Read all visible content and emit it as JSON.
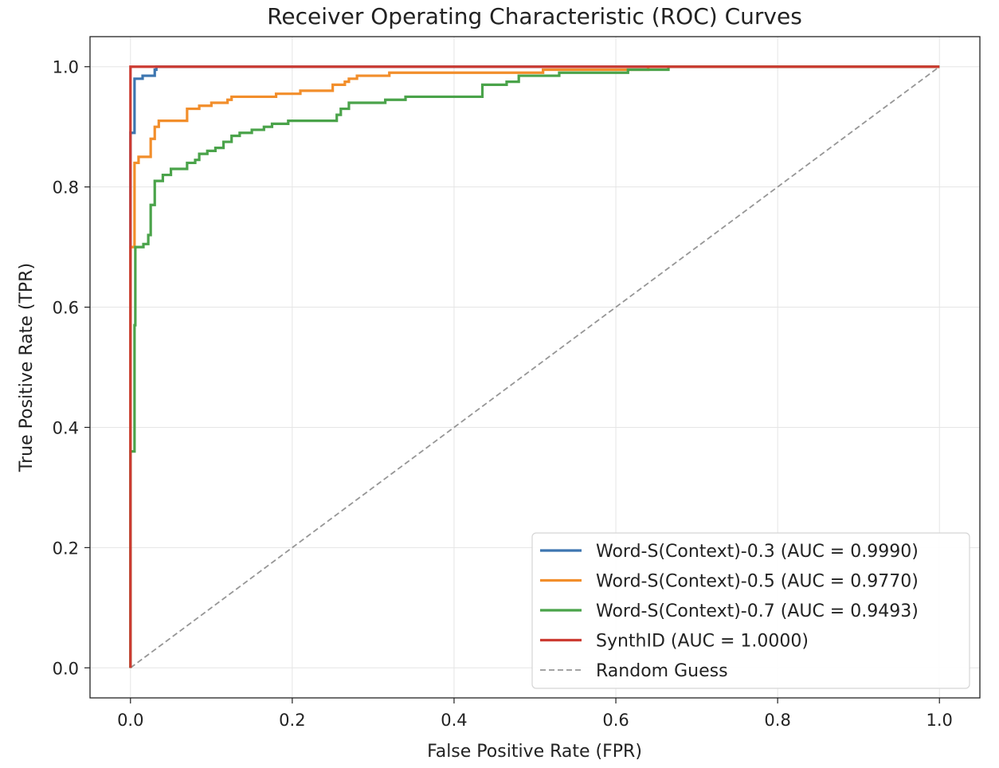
{
  "chart_data": {
    "type": "line",
    "title": "Receiver Operating Characteristic (ROC) Curves",
    "xlabel": "False Positive Rate (FPR)",
    "ylabel": "True Positive Rate (TPR)",
    "xlim": [
      -0.05,
      1.05
    ],
    "ylim": [
      -0.05,
      1.05
    ],
    "xticks": [
      0.0,
      0.2,
      0.4,
      0.6,
      0.8,
      1.0
    ],
    "yticks": [
      0.0,
      0.2,
      0.4,
      0.6,
      0.8,
      1.0
    ],
    "xtick_labels": [
      "0.0",
      "0.2",
      "0.4",
      "0.6",
      "0.8",
      "1.0"
    ],
    "ytick_labels": [
      "0.0",
      "0.2",
      "0.4",
      "0.6",
      "0.8",
      "1.0"
    ],
    "grid": true,
    "legend_position": "lower-right",
    "series": [
      {
        "name": "Word-S(Context)-0.3 (AUC = 0.9990)",
        "color": "#3d76b0",
        "style": "solid",
        "points": [
          [
            0,
            0
          ],
          [
            0,
            0.89
          ],
          [
            0.005,
            0.89
          ],
          [
            0.005,
            0.98
          ],
          [
            0.015,
            0.98
          ],
          [
            0.015,
            0.985
          ],
          [
            0.03,
            0.985
          ],
          [
            0.03,
            0.995
          ],
          [
            0.032,
            0.995
          ],
          [
            0.032,
            1.0
          ],
          [
            1.0,
            1.0
          ]
        ]
      },
      {
        "name": "Word-S(Context)-0.5 (AUC = 0.9770)",
        "color": "#f28e2b",
        "style": "solid",
        "points": [
          [
            0,
            0
          ],
          [
            0,
            0.7
          ],
          [
            0.005,
            0.7
          ],
          [
            0.005,
            0.84
          ],
          [
            0.01,
            0.84
          ],
          [
            0.01,
            0.85
          ],
          [
            0.025,
            0.85
          ],
          [
            0.025,
            0.88
          ],
          [
            0.03,
            0.88
          ],
          [
            0.03,
            0.9
          ],
          [
            0.035,
            0.9
          ],
          [
            0.035,
            0.91
          ],
          [
            0.07,
            0.91
          ],
          [
            0.07,
            0.93
          ],
          [
            0.085,
            0.93
          ],
          [
            0.085,
            0.935
          ],
          [
            0.1,
            0.935
          ],
          [
            0.1,
            0.94
          ],
          [
            0.12,
            0.94
          ],
          [
            0.12,
            0.945
          ],
          [
            0.125,
            0.945
          ],
          [
            0.125,
            0.95
          ],
          [
            0.18,
            0.95
          ],
          [
            0.18,
            0.955
          ],
          [
            0.21,
            0.955
          ],
          [
            0.21,
            0.96
          ],
          [
            0.25,
            0.96
          ],
          [
            0.25,
            0.97
          ],
          [
            0.265,
            0.97
          ],
          [
            0.265,
            0.975
          ],
          [
            0.27,
            0.975
          ],
          [
            0.27,
            0.98
          ],
          [
            0.28,
            0.98
          ],
          [
            0.28,
            0.985
          ],
          [
            0.32,
            0.985
          ],
          [
            0.32,
            0.99
          ],
          [
            0.51,
            0.99
          ],
          [
            0.51,
            0.995
          ],
          [
            0.64,
            0.995
          ],
          [
            0.64,
            1.0
          ],
          [
            1.0,
            1.0
          ]
        ]
      },
      {
        "name": "Word-S(Context)-0.7 (AUC = 0.9493)",
        "color": "#4aa34a",
        "style": "solid",
        "points": [
          [
            0,
            0
          ],
          [
            0,
            0.36
          ],
          [
            0.005,
            0.36
          ],
          [
            0.005,
            0.57
          ],
          [
            0.006,
            0.57
          ],
          [
            0.006,
            0.7
          ],
          [
            0.016,
            0.7
          ],
          [
            0.016,
            0.705
          ],
          [
            0.022,
            0.705
          ],
          [
            0.022,
            0.72
          ],
          [
            0.025,
            0.72
          ],
          [
            0.025,
            0.77
          ],
          [
            0.03,
            0.77
          ],
          [
            0.03,
            0.81
          ],
          [
            0.04,
            0.81
          ],
          [
            0.04,
            0.82
          ],
          [
            0.05,
            0.82
          ],
          [
            0.05,
            0.83
          ],
          [
            0.07,
            0.83
          ],
          [
            0.07,
            0.84
          ],
          [
            0.08,
            0.84
          ],
          [
            0.08,
            0.845
          ],
          [
            0.085,
            0.845
          ],
          [
            0.085,
            0.855
          ],
          [
            0.095,
            0.855
          ],
          [
            0.095,
            0.86
          ],
          [
            0.105,
            0.86
          ],
          [
            0.105,
            0.865
          ],
          [
            0.115,
            0.865
          ],
          [
            0.115,
            0.875
          ],
          [
            0.125,
            0.875
          ],
          [
            0.125,
            0.885
          ],
          [
            0.135,
            0.885
          ],
          [
            0.135,
            0.89
          ],
          [
            0.15,
            0.89
          ],
          [
            0.15,
            0.895
          ],
          [
            0.165,
            0.895
          ],
          [
            0.165,
            0.9
          ],
          [
            0.175,
            0.9
          ],
          [
            0.175,
            0.905
          ],
          [
            0.195,
            0.905
          ],
          [
            0.195,
            0.91
          ],
          [
            0.255,
            0.91
          ],
          [
            0.255,
            0.92
          ],
          [
            0.26,
            0.92
          ],
          [
            0.26,
            0.93
          ],
          [
            0.27,
            0.93
          ],
          [
            0.27,
            0.94
          ],
          [
            0.315,
            0.94
          ],
          [
            0.315,
            0.945
          ],
          [
            0.34,
            0.945
          ],
          [
            0.34,
            0.95
          ],
          [
            0.435,
            0.95
          ],
          [
            0.435,
            0.97
          ],
          [
            0.465,
            0.97
          ],
          [
            0.465,
            0.975
          ],
          [
            0.48,
            0.975
          ],
          [
            0.48,
            0.985
          ],
          [
            0.53,
            0.985
          ],
          [
            0.53,
            0.99
          ],
          [
            0.615,
            0.99
          ],
          [
            0.615,
            0.995
          ],
          [
            0.665,
            0.995
          ],
          [
            0.665,
            1.0
          ],
          [
            1.0,
            1.0
          ]
        ]
      },
      {
        "name": "SynthID (AUC = 1.0000)",
        "color": "#cc3b32",
        "style": "solid",
        "points": [
          [
            0,
            0
          ],
          [
            0,
            1.0
          ],
          [
            1.0,
            1.0
          ]
        ]
      },
      {
        "name": "Random Guess",
        "color": "#969696",
        "style": "dashed",
        "points": [
          [
            0,
            0
          ],
          [
            1.0,
            1.0
          ]
        ]
      }
    ]
  }
}
